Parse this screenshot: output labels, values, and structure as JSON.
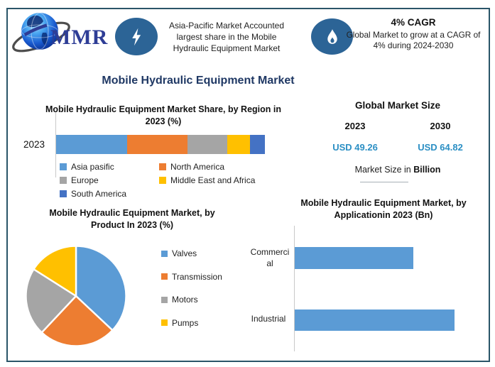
{
  "logo": {
    "text": "MMR"
  },
  "header": {
    "highlight_icon": "lightning-bolt",
    "highlight_text": "Asia-Pacific Market Accounted largest share in the Mobile Hydraulic Equipment Market",
    "cagr_icon": "flame",
    "cagr_title": "4% CAGR",
    "cagr_text": "Global Market to grow at a CAGR of 4% during 2024-2030"
  },
  "main_title": "Mobile Hydraulic Equipment Market",
  "market_size": {
    "title": "Global Market Size",
    "year1": "2023",
    "year2": "2030",
    "value1": "USD 49.26",
    "value2": "USD 64.82",
    "note_prefix": "Market Size in ",
    "note_bold": "Billion"
  },
  "colors": {
    "accent_navy": "#1F3864",
    "value_blue": "#2B8FC4",
    "icon_blue": "#2C6496",
    "chart_blue": "#5B9BD5",
    "chart_orange": "#ED7D31",
    "chart_gray": "#A5A5A5",
    "chart_yellow": "#FFC000",
    "chart_dark_blue": "#4472C4",
    "frame_border": "#2A5568"
  },
  "chart_data": [
    {
      "id": "region_share",
      "type": "bar",
      "subtype": "stacked-horizontal",
      "title": "Mobile Hydraulic Equipment Market Share, by Region in 2023 (%)",
      "categories": [
        "2023"
      ],
      "unit": "%",
      "legend_position": "bottom",
      "series": [
        {
          "name": "Asia pasific",
          "values": [
            34
          ],
          "color": "#5B9BD5"
        },
        {
          "name": "North America",
          "values": [
            29
          ],
          "color": "#ED7D31"
        },
        {
          "name": "Europe",
          "values": [
            19
          ],
          "color": "#A5A5A5"
        },
        {
          "name": "Middle East and Africa",
          "values": [
            11
          ],
          "color": "#FFC000"
        },
        {
          "name": "South America",
          "values": [
            7
          ],
          "color": "#4472C4"
        }
      ]
    },
    {
      "id": "product_share",
      "type": "pie",
      "title": "Mobile Hydraulic Equipment Market, by Product In 2023 (%)",
      "labels": [
        "Valves",
        "Transmission",
        "Motors",
        "Pumps"
      ],
      "values": [
        37,
        25,
        22,
        16
      ],
      "colors": [
        "#5B9BD5",
        "#ED7D31",
        "#A5A5A5",
        "#FFC000"
      ],
      "start_angle": "top",
      "direction": "clockwise",
      "legend_position": "right"
    },
    {
      "id": "application",
      "type": "bar",
      "subtype": "horizontal",
      "title": "Mobile Hydraulic Equipment Market, by Applicationin 2023 (Bn)",
      "categories": [
        "Commercial",
        "Industrial"
      ],
      "values": [
        21.0,
        28.3
      ],
      "unit": "Bn (estimated from bar lengths)",
      "color": "#5B9BD5"
    }
  ]
}
